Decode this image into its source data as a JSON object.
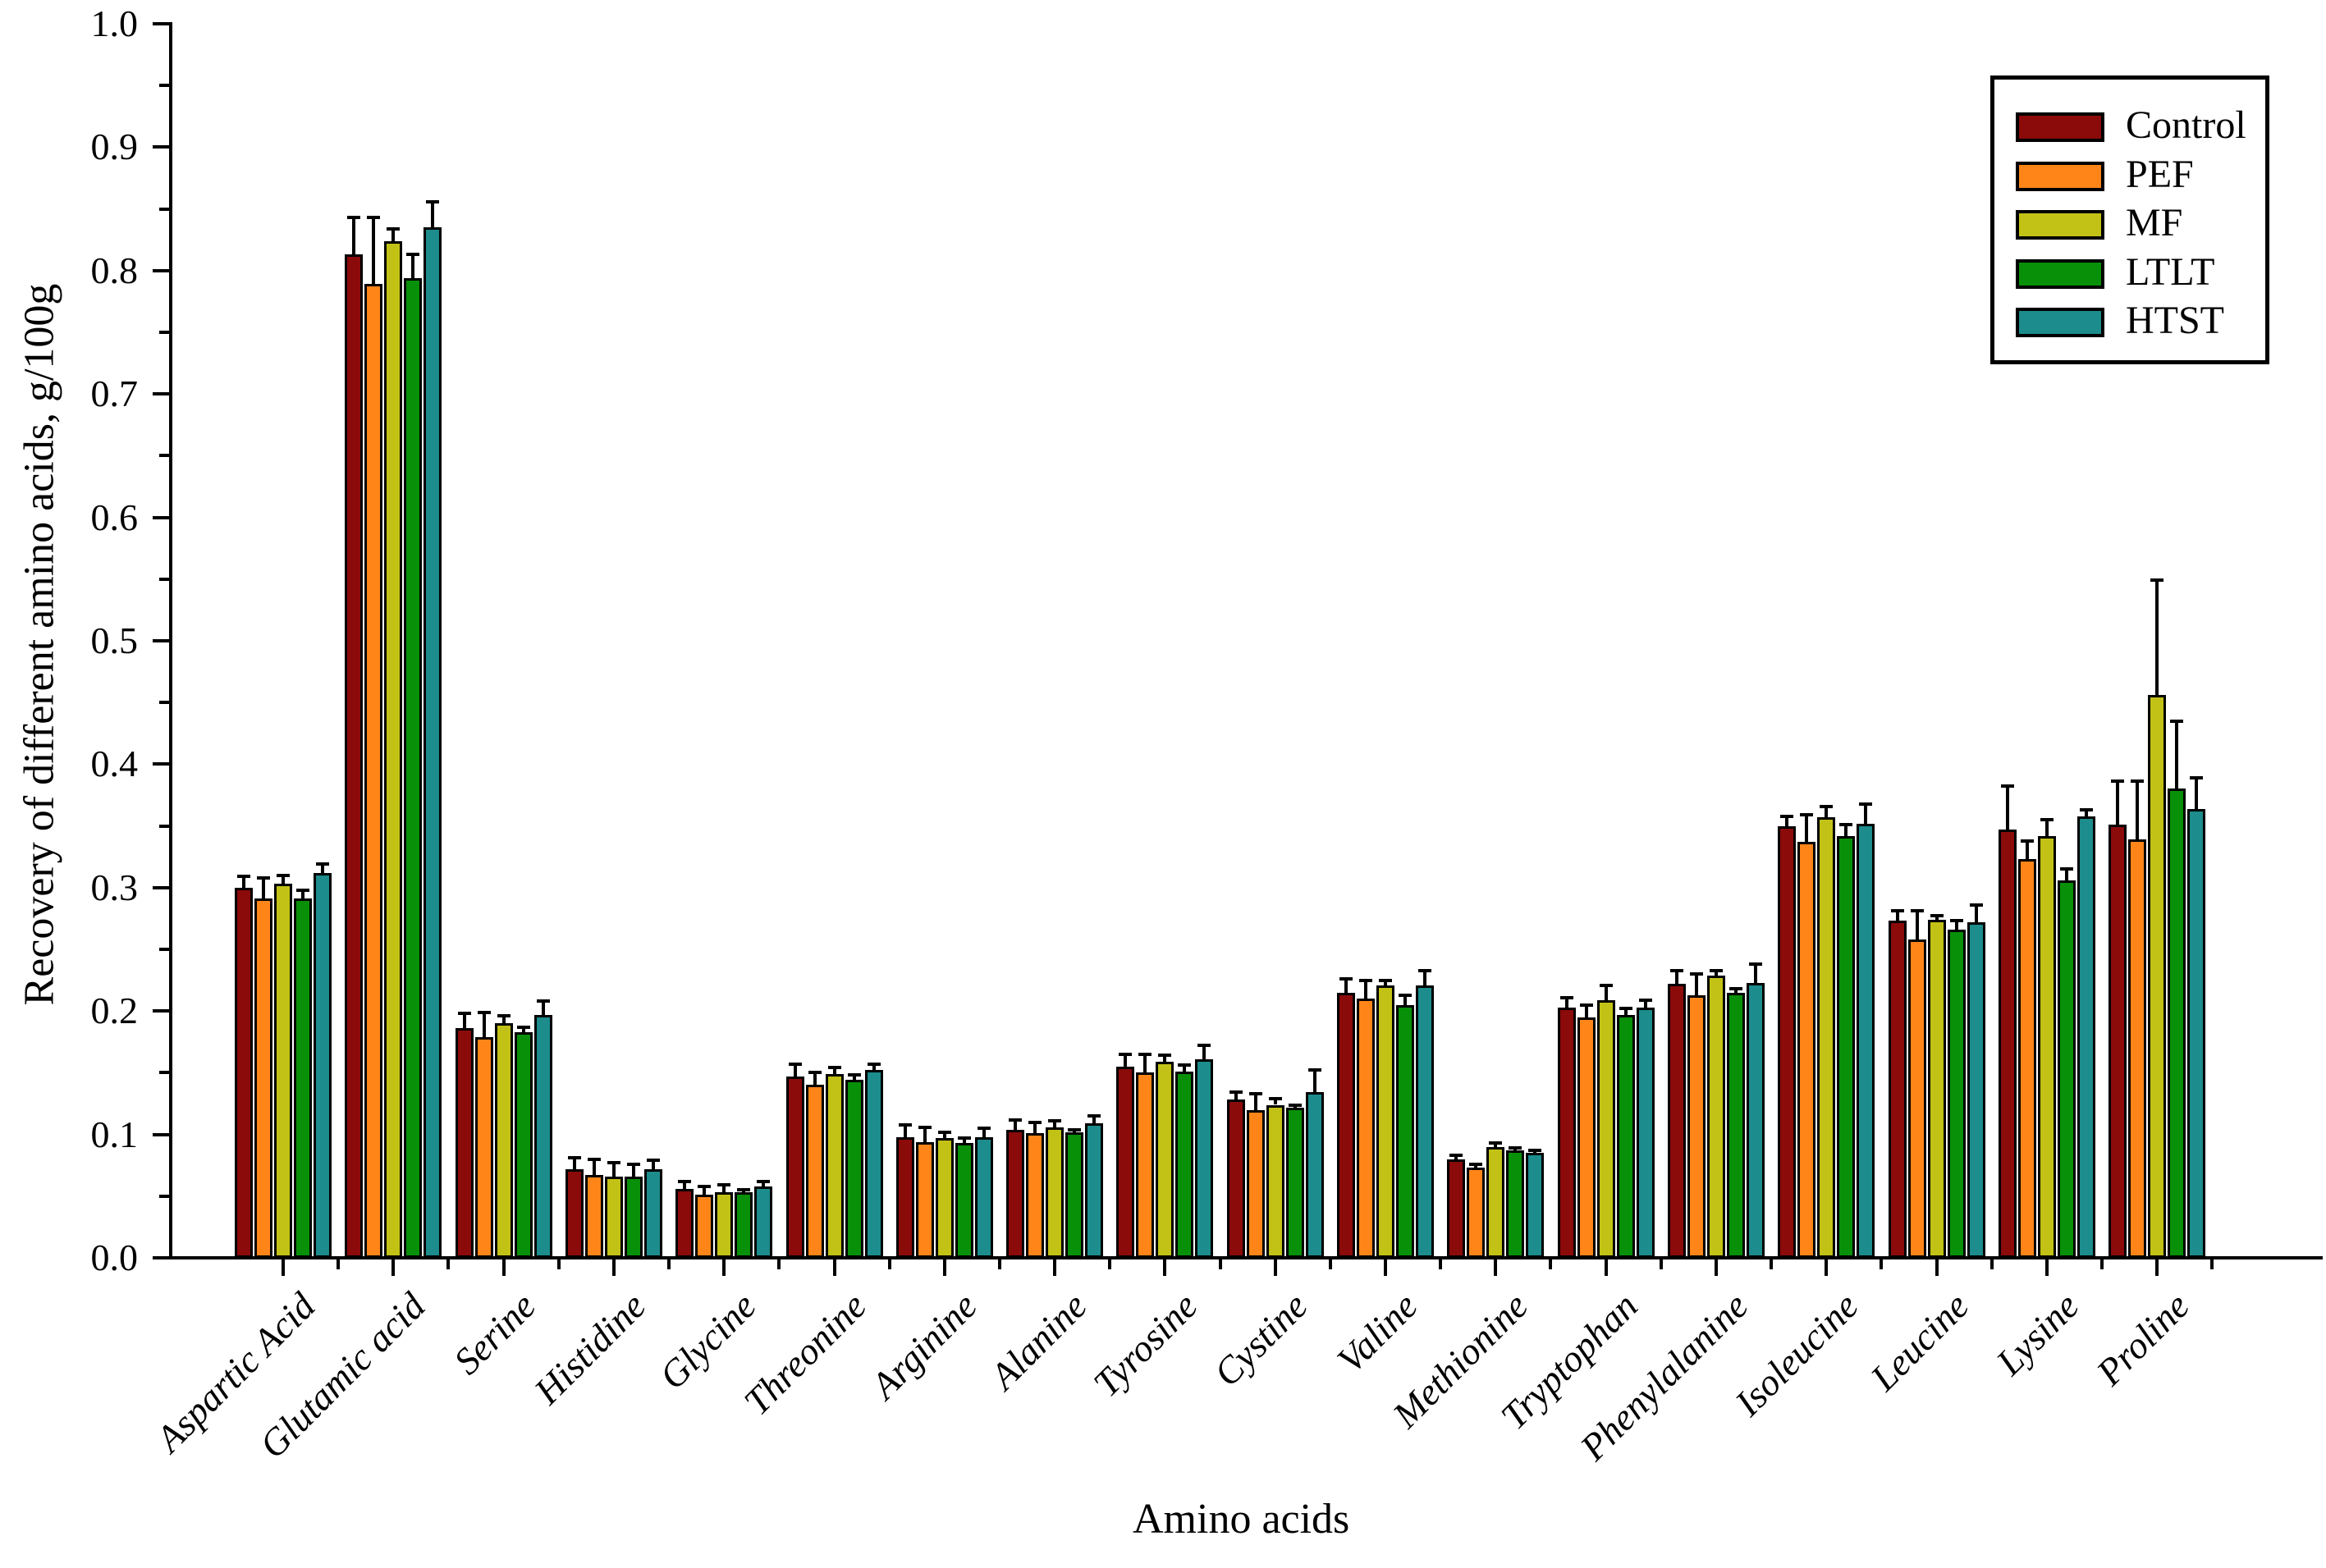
{
  "figure": {
    "y_tick_labels": [
      "0.0",
      "0.1",
      "0.2",
      "0.3",
      "0.4",
      "0.5",
      "0.6",
      "0.7",
      "0.8",
      "0.9",
      "1.0"
    ]
  },
  "legend": {
    "items": [
      {
        "label": "Control",
        "color": "#8B0A0A"
      },
      {
        "label": "PEF",
        "color": "#FF8519"
      },
      {
        "label": "MF",
        "color": "#C2C216"
      },
      {
        "label": "LTLT",
        "color": "#089008"
      },
      {
        "label": "HTST",
        "color": "#1C8C8C"
      }
    ]
  },
  "chart_data": {
    "type": "bar",
    "title": "",
    "xlabel": "Amino acids",
    "ylabel": "Recovery of different amino acids, g/100g",
    "ylim": [
      0,
      1.0
    ],
    "ytick_step": 0.1,
    "ytick_minor_step": 0.05,
    "grid": false,
    "legend_position": "upper right",
    "error_bars": "upper only",
    "categories": [
      "Aspartic Acid",
      "Glutamic acid",
      "Serine",
      "Histidine",
      "Glycine",
      "Threonine",
      "Arginine",
      "Alanine",
      "Tyrosine",
      "Cystine",
      "Valine",
      "Methionine",
      "Tryptophan",
      "Phenylalanine",
      "Isoleucine",
      "Leucine",
      "Lysine",
      "Proline"
    ],
    "series": [
      {
        "name": "Control",
        "color": "#8B0A0A",
        "values": [
          0.3,
          0.813,
          0.186,
          0.072,
          0.056,
          0.147,
          0.098,
          0.104,
          0.155,
          0.128,
          0.215,
          0.08,
          0.203,
          0.222,
          0.35,
          0.273,
          0.347,
          0.351
        ],
        "errors": [
          0.009,
          0.03,
          0.012,
          0.009,
          0.006,
          0.01,
          0.01,
          0.008,
          0.01,
          0.006,
          0.011,
          0.003,
          0.008,
          0.011,
          0.008,
          0.008,
          0.035,
          0.035
        ]
      },
      {
        "name": "PEF",
        "color": "#FF8519",
        "values": [
          0.291,
          0.789,
          0.179,
          0.067,
          0.051,
          0.14,
          0.094,
          0.101,
          0.15,
          0.12,
          0.21,
          0.073,
          0.195,
          0.213,
          0.337,
          0.258,
          0.323,
          0.339
        ],
        "errors": [
          0.017,
          0.054,
          0.02,
          0.013,
          0.007,
          0.01,
          0.012,
          0.009,
          0.015,
          0.013,
          0.015,
          0.003,
          0.01,
          0.017,
          0.022,
          0.023,
          0.015,
          0.047
        ]
      },
      {
        "name": "MF",
        "color": "#C2C216",
        "values": [
          0.303,
          0.824,
          0.19,
          0.066,
          0.053,
          0.149,
          0.097,
          0.106,
          0.159,
          0.124,
          0.221,
          0.09,
          0.209,
          0.229,
          0.357,
          0.274,
          0.342,
          0.456
        ],
        "errors": [
          0.007,
          0.01,
          0.006,
          0.011,
          0.006,
          0.005,
          0.005,
          0.005,
          0.005,
          0.005,
          0.004,
          0.003,
          0.012,
          0.004,
          0.009,
          0.003,
          0.013,
          0.093
        ]
      },
      {
        "name": "LTLT",
        "color": "#089008",
        "values": [
          0.291,
          0.794,
          0.183,
          0.066,
          0.053,
          0.144,
          0.093,
          0.102,
          0.151,
          0.122,
          0.205,
          0.087,
          0.197,
          0.215,
          0.342,
          0.266,
          0.306,
          0.38
        ],
        "errors": [
          0.007,
          0.019,
          0.004,
          0.01,
          0.002,
          0.004,
          0.004,
          0.002,
          0.005,
          0.002,
          0.008,
          0.002,
          0.005,
          0.003,
          0.009,
          0.007,
          0.009,
          0.055
        ]
      },
      {
        "name": "HTST",
        "color": "#1C8C8C",
        "values": [
          0.312,
          0.835,
          0.197,
          0.072,
          0.058,
          0.152,
          0.098,
          0.109,
          0.161,
          0.134,
          0.221,
          0.085,
          0.203,
          0.223,
          0.352,
          0.272,
          0.358,
          0.364
        ],
        "errors": [
          0.007,
          0.021,
          0.011,
          0.007,
          0.004,
          0.005,
          0.007,
          0.006,
          0.011,
          0.018,
          0.012,
          0.002,
          0.006,
          0.015,
          0.016,
          0.014,
          0.005,
          0.025
        ]
      }
    ]
  }
}
